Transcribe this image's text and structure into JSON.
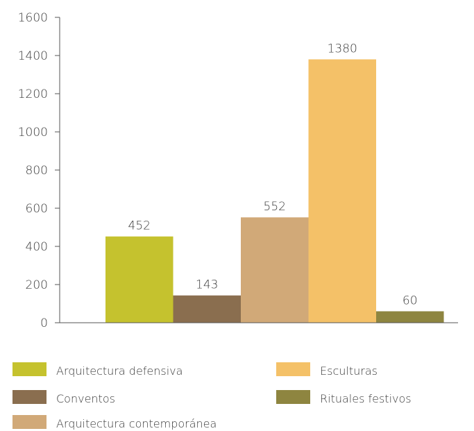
{
  "chart_data": {
    "type": "bar",
    "title": "",
    "xlabel": "",
    "ylabel": "",
    "ylim": [
      0,
      1600
    ],
    "yticks": [
      0,
      200,
      400,
      600,
      800,
      1000,
      1200,
      1400,
      1600
    ],
    "grid": false,
    "legend_position": "bottom",
    "series": [
      {
        "name": "Arquitectura defensiva",
        "value": 452,
        "label": "452",
        "color": "#c5c22e"
      },
      {
        "name": "Conventos",
        "value": 143,
        "label": "143",
        "color": "#8a6e4f"
      },
      {
        "name": "Arquitectura contemporánea",
        "value": 552,
        "label": "552",
        "color": "#d1a978"
      },
      {
        "name": "Esculturas",
        "value": 1380,
        "label": "1380",
        "color": "#f4c168"
      },
      {
        "name": "Rituales festivos",
        "value": 60,
        "label": "60",
        "color": "#8e8540"
      }
    ]
  }
}
